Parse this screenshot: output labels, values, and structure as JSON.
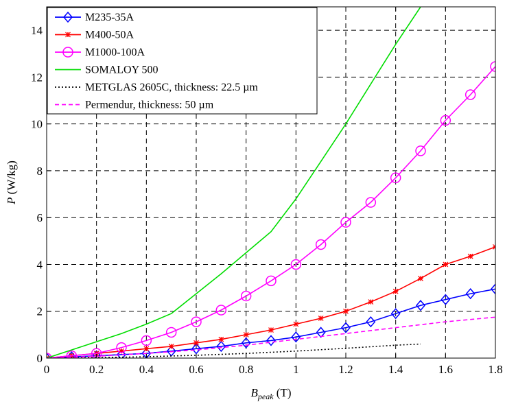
{
  "chart_data": {
    "type": "line",
    "title": "",
    "xlabel_main": "B",
    "xlabel_sub": "peak",
    "xlabel_unit": " (T)",
    "ylabel_main": "P",
    "ylabel_unit": " (W/kg)",
    "xlim": [
      0,
      1.8
    ],
    "ylim": [
      0,
      15
    ],
    "xticks": [
      0,
      0.2,
      0.4,
      0.6,
      0.8,
      1,
      1.2,
      1.4,
      1.6,
      1.8
    ],
    "xtick_labels": [
      "0",
      "0.2",
      "0.4",
      "0.6",
      "0.8",
      "1",
      "1.2",
      "1.4",
      "1.6",
      "1.8"
    ],
    "yticks": [
      0,
      2,
      4,
      6,
      8,
      10,
      12,
      14
    ],
    "ytick_labels": [
      "0",
      "2",
      "4",
      "6",
      "8",
      "10",
      "12",
      "14"
    ],
    "grid": true,
    "legend_position": "top-left",
    "series": [
      {
        "name": "M235-35A",
        "color": "#0000ff",
        "marker": "diamond",
        "dash": "solid",
        "x": [
          0,
          0.1,
          0.2,
          0.3,
          0.4,
          0.5,
          0.6,
          0.7,
          0.8,
          0.9,
          1.0,
          1.1,
          1.2,
          1.3,
          1.4,
          1.5,
          1.6,
          1.7,
          1.8
        ],
        "y": [
          0,
          0.05,
          0.1,
          0.15,
          0.2,
          0.3,
          0.4,
          0.5,
          0.65,
          0.75,
          0.9,
          1.1,
          1.3,
          1.55,
          1.9,
          2.25,
          2.5,
          2.75,
          2.95
        ]
      },
      {
        "name": "M400-50A",
        "color": "#ff0000",
        "marker": "star",
        "dash": "solid",
        "x": [
          0,
          0.1,
          0.2,
          0.3,
          0.4,
          0.5,
          0.6,
          0.7,
          0.8,
          0.9,
          1.0,
          1.1,
          1.2,
          1.3,
          1.4,
          1.5,
          1.6,
          1.7,
          1.8
        ],
        "y": [
          0,
          0.1,
          0.2,
          0.3,
          0.4,
          0.5,
          0.65,
          0.8,
          1.0,
          1.2,
          1.45,
          1.7,
          2.0,
          2.4,
          2.85,
          3.4,
          4.0,
          4.35,
          4.75
        ]
      },
      {
        "name": "M1000-100A",
        "color": "#ff00ff",
        "marker": "circle",
        "dash": "solid",
        "x": [
          0,
          0.1,
          0.2,
          0.3,
          0.4,
          0.5,
          0.6,
          0.7,
          0.8,
          0.9,
          1.0,
          1.1,
          1.2,
          1.3,
          1.4,
          1.5,
          1.6,
          1.7,
          1.8
        ],
        "y": [
          0,
          0.1,
          0.2,
          0.45,
          0.75,
          1.1,
          1.55,
          2.05,
          2.65,
          3.3,
          4.0,
          4.85,
          5.8,
          6.65,
          7.7,
          8.85,
          10.15,
          11.25,
          12.45
        ]
      },
      {
        "name": "SOMALOY 500",
        "color": "#00dd00",
        "marker": "none",
        "dash": "solid",
        "x": [
          0,
          0.1,
          0.2,
          0.3,
          0.4,
          0.5,
          0.6,
          0.7,
          0.8,
          0.9,
          1.0,
          1.1,
          1.2,
          1.3,
          1.4,
          1.5
        ],
        "y": [
          0,
          0.35,
          0.7,
          1.05,
          1.45,
          1.9,
          2.75,
          3.6,
          4.5,
          5.4,
          6.8,
          8.4,
          10.0,
          11.7,
          13.4,
          15.0
        ]
      },
      {
        "name": "METGLAS 2605C, thickness: 22.5 µm",
        "color": "#000000",
        "marker": "none",
        "dash": "dotted",
        "x": [
          0,
          0.2,
          0.4,
          0.6,
          0.8,
          1.0,
          1.2,
          1.4,
          1.5
        ],
        "y": [
          0,
          0.02,
          0.06,
          0.12,
          0.2,
          0.3,
          0.42,
          0.55,
          0.6
        ]
      },
      {
        "name": "Permendur, thickness: 50 µm",
        "color": "#ff00ff",
        "marker": "none",
        "dash": "dashed",
        "x": [
          0,
          0.2,
          0.4,
          0.6,
          0.8,
          1.0,
          1.2,
          1.4,
          1.6,
          1.8
        ],
        "y": [
          0,
          0.08,
          0.2,
          0.35,
          0.55,
          0.8,
          1.05,
          1.3,
          1.55,
          1.75
        ]
      }
    ]
  }
}
